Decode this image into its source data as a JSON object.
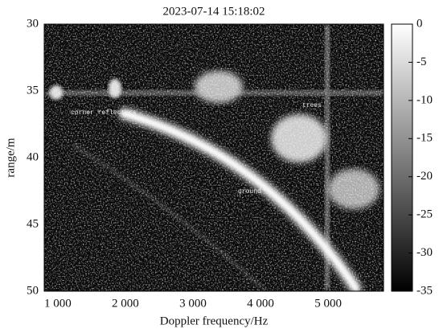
{
  "chart_data": {
    "type": "heatmap",
    "title": "2023-07-14 15:18:02",
    "x_label": "Doppler frequency/Hz",
    "y_label": "range/m",
    "xlim": [
      800,
      5820
    ],
    "xticks": [
      {
        "value": 1000,
        "label": "1 000"
      },
      {
        "value": 2000,
        "label": "2 000"
      },
      {
        "value": 3000,
        "label": "3 000"
      },
      {
        "value": 4000,
        "label": "4 000"
      },
      {
        "value": 5000,
        "label": "5 000"
      }
    ],
    "ylim": [
      30,
      50
    ],
    "y_inverted": true,
    "yticks": [
      30,
      35,
      40,
      45,
      50
    ],
    "colorbar": {
      "lim": [
        -35,
        0
      ],
      "ticks": [
        0,
        -5,
        -10,
        -15,
        -20,
        -25,
        -30,
        -35
      ],
      "colormap": "gray"
    },
    "annotations": [
      "corner reflectors",
      "trees",
      "ground"
    ]
  }
}
